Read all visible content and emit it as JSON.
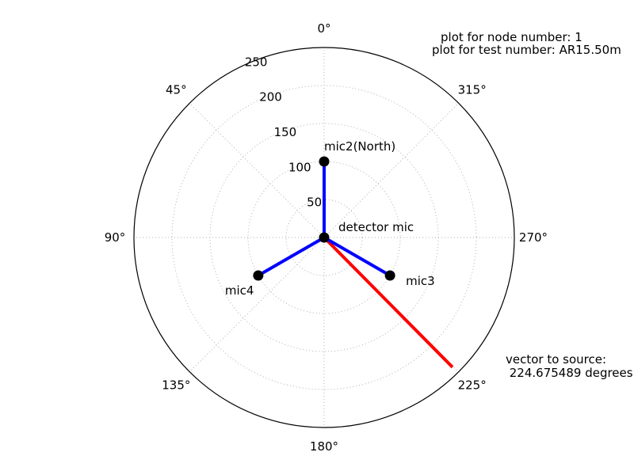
{
  "chart_data": {
    "type": "polar",
    "theta_zero": "top",
    "theta_direction": "counterclockwise",
    "rmax": 250,
    "r_ticks": [
      50,
      100,
      150,
      200,
      250
    ],
    "r_tick_labels": [
      "50",
      "100",
      "150",
      "200",
      "250"
    ],
    "theta_ticks": [
      0,
      45,
      90,
      135,
      180,
      225,
      270,
      315
    ],
    "theta_tick_labels": [
      "0°",
      "45°",
      "90°",
      "135°",
      "180°",
      "225°",
      "270°",
      "315°"
    ],
    "grid": true,
    "microphones": [
      {
        "label": "mic2(North)",
        "r": 100,
        "theta": 0
      },
      {
        "label": "mic4",
        "r": 100,
        "theta": 120
      },
      {
        "label": "mic3",
        "r": 100,
        "theta": 240
      },
      {
        "label": "detector mic",
        "r": 0,
        "theta": 0
      }
    ],
    "source_vector": {
      "r": 240,
      "theta": 224.675489
    },
    "annotations": {
      "node": "plot for node number: 1",
      "test": "plot for test number: AR15.50m",
      "vector_line1": "vector to source:",
      "vector_line2": " 224.675489 degrees"
    },
    "colors": {
      "mic_lines": "#0000ff",
      "source_vector": "#ff0000",
      "markers": "#000000",
      "grid": "#b0b0b0"
    }
  }
}
